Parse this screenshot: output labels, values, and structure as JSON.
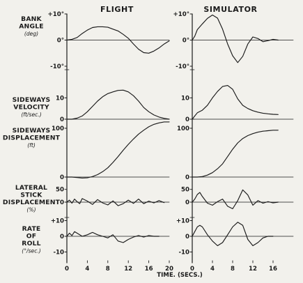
{
  "chart_data": {
    "type": "line",
    "panel_titles": [
      "FLIGHT",
      "SIMULATOR"
    ],
    "xlabel": "TIME. (SECS.)",
    "xlim": [
      0,
      20
    ],
    "xticks": [
      0,
      4,
      8,
      12,
      16,
      20
    ],
    "xtick_labels": [
      "0",
      "4",
      "8",
      "12",
      "16",
      "20"
    ],
    "rows": [
      {
        "label_lines": [
          "BANK",
          "ANGLE"
        ],
        "unit": "(deg)",
        "ylim": [
          -10,
          10
        ],
        "left_ticks": [
          {
            "v": 10,
            "t": "+10°"
          },
          {
            "v": 0,
            "t": "0°"
          },
          {
            "v": -10,
            "t": "-10°"
          }
        ],
        "right_ticks": [
          {
            "v": 10,
            "t": "+10°"
          },
          {
            "v": 0,
            "t": "0°"
          },
          {
            "v": -10,
            "t": "-10°"
          }
        ],
        "flight": {
          "x": [
            0,
            1,
            2,
            3,
            4,
            5,
            6,
            7,
            8,
            9,
            10,
            11,
            12,
            13,
            14,
            15,
            16,
            17,
            18,
            19,
            20
          ],
          "y": [
            0,
            0.3,
            1,
            2.5,
            3.8,
            4.8,
            5.1,
            5.1,
            4.9,
            4.2,
            3.5,
            2.2,
            0.7,
            -1.5,
            -3.5,
            -4.8,
            -5,
            -4.2,
            -3,
            -1.5,
            -0.3
          ]
        },
        "simulator": {
          "x": [
            0,
            0.5,
            1,
            2,
            3,
            4,
            5,
            6,
            7,
            8,
            9,
            10,
            11,
            12,
            13,
            14,
            15,
            16,
            17
          ],
          "y": [
            0,
            1.5,
            4,
            6.2,
            8.3,
            9.6,
            8.4,
            4.2,
            -1.5,
            -6,
            -8.6,
            -6.2,
            -1.5,
            1.2,
            0.6,
            -0.6,
            -0.2,
            0.3,
            0
          ]
        }
      },
      {
        "label_lines": [
          "SIDEWAYS",
          "VELOCITY"
        ],
        "unit": "(ft/sec.)",
        "ylim": [
          0,
          16
        ],
        "left_ticks": [
          {
            "v": 10,
            "t": "10"
          },
          {
            "v": 0,
            "t": "0"
          }
        ],
        "right_ticks": [
          {
            "v": 10,
            "t": "10"
          },
          {
            "v": 0,
            "t": "0"
          }
        ],
        "flight": {
          "x": [
            0,
            1,
            2,
            3,
            4,
            5,
            6,
            7,
            8,
            9,
            10,
            11,
            12,
            13,
            14,
            15,
            16,
            17,
            18,
            19,
            20
          ],
          "y": [
            0,
            0,
            0.5,
            1.5,
            3.5,
            6,
            8.5,
            10.5,
            12,
            12.8,
            13.5,
            13.6,
            12.8,
            11,
            8.5,
            5.5,
            3.5,
            2,
            1,
            0.4,
            0
          ]
        },
        "simulator": {
          "x": [
            0,
            0.5,
            1,
            2,
            3,
            4,
            5,
            6,
            7,
            8,
            9,
            10,
            11,
            12,
            13,
            14,
            15,
            16,
            17
          ],
          "y": [
            0,
            1.5,
            3,
            4.2,
            6.5,
            10,
            13,
            15.3,
            15.8,
            14,
            9.5,
            6.5,
            5,
            4,
            3.3,
            2.8,
            2.5,
            2.3,
            2.2
          ]
        }
      },
      {
        "label_lines": [
          "SIDEWAYS",
          "DISPLACEMENT"
        ],
        "unit": "(ft)",
        "ylim": [
          0,
          110
        ],
        "left_ticks": [
          {
            "v": 100,
            "t": "100"
          },
          {
            "v": 0,
            "t": "0"
          }
        ],
        "right_ticks": [
          {
            "v": 100,
            "t": "100"
          },
          {
            "v": 0,
            "t": "0"
          }
        ],
        "flight": {
          "x": [
            0,
            1,
            2,
            3,
            4,
            5,
            6,
            7,
            8,
            9,
            10,
            11,
            12,
            13,
            14,
            15,
            16,
            17,
            18,
            19,
            20
          ],
          "y": [
            0,
            0,
            -1,
            -2,
            -1.5,
            1,
            5,
            11,
            19,
            30,
            42,
            55,
            67,
            78,
            88,
            96,
            103,
            108,
            111,
            113,
            113
          ]
        },
        "simulator": {
          "x": [
            0,
            1,
            2,
            3,
            4,
            5,
            6,
            7,
            8,
            9,
            10,
            11,
            12,
            13,
            14,
            15,
            16,
            17
          ],
          "y": [
            0,
            0,
            1,
            4,
            9,
            17,
            27,
            42,
            57,
            70,
            79,
            85,
            89,
            92,
            94,
            95,
            96,
            96
          ]
        }
      },
      {
        "label_lines": [
          "LATERAL",
          "STICK",
          "DISPLACEMENT"
        ],
        "unit": "(%)",
        "ylim": [
          -60,
          60
        ],
        "left_ticks": [
          {
            "v": 50,
            "t": "50"
          },
          {
            "v": 0,
            "t": "0"
          }
        ],
        "right_ticks": [
          {
            "v": 50,
            "t": "50"
          },
          {
            "v": 0,
            "t": "0"
          }
        ],
        "flight": {
          "x": [
            0,
            0.5,
            1,
            1.5,
            2,
            2.5,
            3,
            4,
            5,
            6,
            7,
            8,
            9,
            10,
            11,
            12,
            13,
            14,
            15,
            16,
            17,
            18,
            19
          ],
          "y": [
            0,
            8,
            -4,
            12,
            2,
            -6,
            14,
            4,
            -9,
            10,
            -3,
            -11,
            5,
            -14,
            -6,
            8,
            -5,
            12,
            -6,
            4,
            -3,
            6,
            -2
          ]
        },
        "simulator": {
          "x": [
            0,
            0.5,
            1,
            1.5,
            2,
            3,
            4,
            5,
            6,
            7,
            8,
            9,
            10,
            11,
            12,
            13,
            14,
            15,
            16,
            17
          ],
          "y": [
            0,
            12,
            30,
            38,
            22,
            -4,
            -12,
            2,
            12,
            -16,
            -26,
            6,
            48,
            28,
            -12,
            6,
            -4,
            2,
            -3,
            0
          ]
        }
      },
      {
        "label_lines": [
          "RATE",
          "OF",
          "ROLL"
        ],
        "unit": "(°/sec.)",
        "ylim": [
          -12,
          12
        ],
        "left_ticks": [
          {
            "v": 10,
            "t": "+10"
          },
          {
            "v": 0,
            "t": "0"
          },
          {
            "v": -10,
            "t": "-10"
          }
        ],
        "right_ticks": [
          {
            "v": 10,
            "t": "+10"
          },
          {
            "v": 0,
            "t": "0"
          },
          {
            "v": -10,
            "t": "-10"
          }
        ],
        "flight": {
          "x": [
            0,
            0.5,
            1,
            1.5,
            2,
            3,
            4,
            5,
            6,
            7,
            8,
            9,
            10,
            11,
            12,
            13,
            14,
            15,
            16,
            17,
            18
          ],
          "y": [
            0,
            2,
            0.5,
            3,
            2,
            0,
            1,
            2.5,
            1,
            0,
            -1,
            1,
            -3,
            -4,
            -2,
            -0.5,
            0.5,
            -0.5,
            0.5,
            0,
            0
          ]
        },
        "simulator": {
          "x": [
            0,
            0.5,
            1,
            1.5,
            2,
            3,
            4,
            5,
            6,
            7,
            8,
            9,
            10,
            11,
            12,
            13,
            14,
            15,
            16
          ],
          "y": [
            0,
            3,
            6,
            7,
            6,
            1,
            -3,
            -6,
            -4,
            1,
            6,
            9,
            7,
            -2,
            -6,
            -4,
            -1,
            0,
            0
          ]
        }
      }
    ]
  }
}
